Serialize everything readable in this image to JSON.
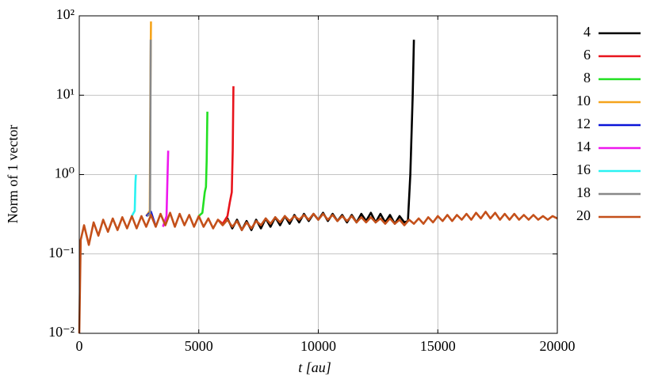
{
  "chart_data": {
    "type": "line",
    "log_y": true,
    "grid": true,
    "legend": "right",
    "xlabel": "t [au]",
    "ylabel": "Norm of 1 vector",
    "xlim": [
      0,
      20000
    ],
    "xticks": [
      0,
      5000,
      10000,
      15000,
      20000
    ],
    "ylim": [
      0.01,
      100
    ],
    "yticks": [
      {
        "value": 0.01,
        "label": "10⁻²"
      },
      {
        "value": 0.1,
        "label": "10⁻¹"
      },
      {
        "value": 1,
        "label": "10⁰"
      },
      {
        "value": 10,
        "label": "10¹"
      },
      {
        "value": 100,
        "label": "10²"
      }
    ],
    "series": [
      {
        "name": "4",
        "color": "#000000",
        "x": [
          6000,
          6200,
          6400,
          6600,
          6800,
          7000,
          7200,
          7400,
          7600,
          7800,
          8000,
          8200,
          8400,
          8600,
          8800,
          9000,
          9200,
          9400,
          9600,
          9800,
          10000,
          10200,
          10400,
          10600,
          10800,
          11000,
          11200,
          11400,
          11600,
          11800,
          12000,
          12200,
          12400,
          12600,
          12800,
          13000,
          13200,
          13400,
          13600,
          13750,
          13850,
          13950,
          14000
        ],
        "values": [
          0.24,
          0.28,
          0.21,
          0.27,
          0.2,
          0.26,
          0.2,
          0.27,
          0.21,
          0.28,
          0.22,
          0.29,
          0.23,
          0.3,
          0.24,
          0.31,
          0.25,
          0.32,
          0.26,
          0.32,
          0.27,
          0.33,
          0.26,
          0.32,
          0.26,
          0.31,
          0.25,
          0.31,
          0.25,
          0.32,
          0.26,
          0.33,
          0.25,
          0.32,
          0.25,
          0.31,
          0.24,
          0.3,
          0.25,
          0.26,
          1.0,
          10,
          50
        ]
      },
      {
        "name": "6",
        "color": "#e8141c",
        "x": [
          5800,
          6000,
          6200,
          6300,
          6380,
          6420,
          6450
        ],
        "values": [
          0.27,
          0.24,
          0.3,
          0.45,
          0.6,
          2,
          13
        ]
      },
      {
        "name": "8",
        "color": "#22e022",
        "x": [
          5000,
          5150,
          5250,
          5300,
          5330,
          5360
        ],
        "values": [
          0.3,
          0.33,
          0.6,
          0.7,
          1.5,
          6.2
        ]
      },
      {
        "name": "10",
        "color": "#f5a41c",
        "x": [
          2800,
          2950,
          2980,
          3000
        ],
        "values": [
          0.3,
          0.35,
          20,
          85
        ]
      },
      {
        "name": "12",
        "color": "#0a14d8",
        "x": [
          2800,
          3000,
          3200
        ],
        "values": [
          0.3,
          0.34,
          0.22
        ]
      },
      {
        "name": "14",
        "color": "#ee18ee",
        "x": [
          3500,
          3650,
          3700,
          3720
        ],
        "values": [
          0.22,
          0.3,
          1.2,
          2.0
        ]
      },
      {
        "name": "16",
        "color": "#2af2f2",
        "x": [
          2200,
          2320,
          2350,
          2370
        ],
        "values": [
          0.3,
          0.35,
          0.8,
          1.0
        ]
      },
      {
        "name": "18",
        "color": "#888888",
        "x": [
          2850,
          2960,
          2990
        ],
        "values": [
          0.3,
          0.32,
          50
        ]
      },
      {
        "name": "20",
        "color": "#c4501a",
        "x": [
          0,
          60,
          200,
          400,
          600,
          800,
          1000,
          1200,
          1400,
          1600,
          1800,
          2000,
          2200,
          2400,
          2600,
          2800,
          3000,
          3200,
          3400,
          3600,
          3800,
          4000,
          4200,
          4400,
          4600,
          4800,
          5000,
          5200,
          5400,
          5600,
          5800,
          6000,
          6200,
          6400,
          6600,
          6800,
          7000,
          7200,
          7400,
          7600,
          7800,
          8000,
          8200,
          8400,
          8600,
          8800,
          9000,
          9200,
          9400,
          9600,
          9800,
          10000,
          10200,
          10400,
          10600,
          10800,
          11000,
          11200,
          11400,
          11600,
          11800,
          12000,
          12200,
          12400,
          12600,
          12800,
          13000,
          13200,
          13400,
          13600,
          13800,
          14000,
          14200,
          14400,
          14600,
          14800,
          15000,
          15200,
          15400,
          15600,
          15800,
          16000,
          16200,
          16400,
          16600,
          16800,
          17000,
          17200,
          17400,
          17600,
          17800,
          18000,
          18200,
          18400,
          18600,
          18800,
          19000,
          19200,
          19400,
          19600,
          19800,
          20000
        ],
        "values": [
          0.01,
          0.15,
          0.23,
          0.13,
          0.25,
          0.17,
          0.27,
          0.19,
          0.28,
          0.2,
          0.29,
          0.21,
          0.3,
          0.21,
          0.3,
          0.22,
          0.31,
          0.22,
          0.32,
          0.23,
          0.33,
          0.22,
          0.32,
          0.23,
          0.31,
          0.22,
          0.3,
          0.22,
          0.28,
          0.21,
          0.27,
          0.23,
          0.27,
          0.22,
          0.26,
          0.2,
          0.25,
          0.21,
          0.26,
          0.23,
          0.28,
          0.24,
          0.29,
          0.25,
          0.3,
          0.26,
          0.3,
          0.27,
          0.31,
          0.27,
          0.32,
          0.27,
          0.32,
          0.27,
          0.31,
          0.26,
          0.3,
          0.26,
          0.3,
          0.25,
          0.29,
          0.25,
          0.29,
          0.25,
          0.28,
          0.24,
          0.28,
          0.24,
          0.27,
          0.23,
          0.27,
          0.24,
          0.28,
          0.24,
          0.29,
          0.25,
          0.3,
          0.26,
          0.31,
          0.26,
          0.31,
          0.27,
          0.32,
          0.27,
          0.33,
          0.28,
          0.34,
          0.28,
          0.33,
          0.27,
          0.32,
          0.27,
          0.32,
          0.27,
          0.31,
          0.27,
          0.31,
          0.27,
          0.3,
          0.27,
          0.3,
          0.28
        ]
      }
    ]
  }
}
